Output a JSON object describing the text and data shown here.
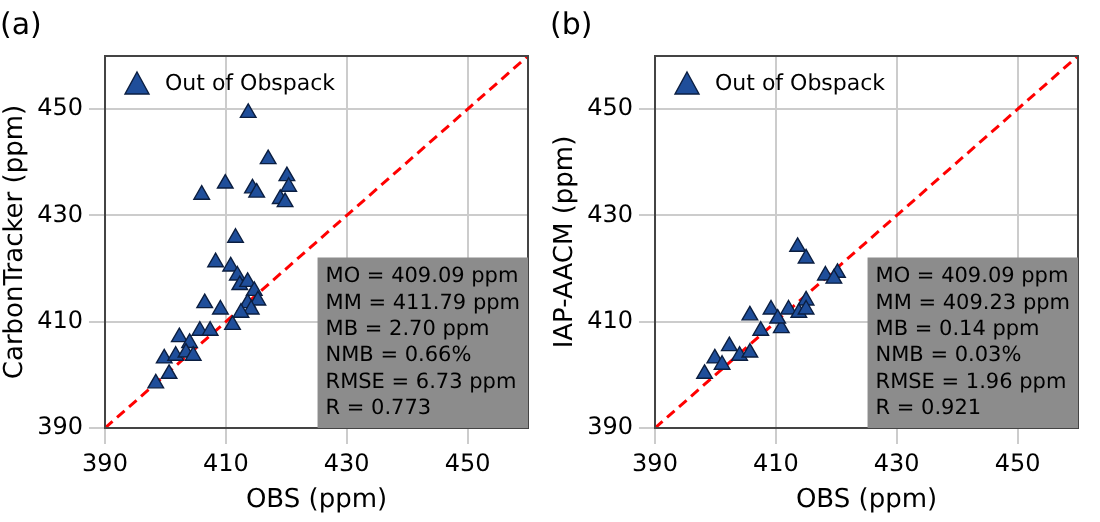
{
  "chart_data": [
    {
      "type": "scatter",
      "title": "(a)",
      "xlabel": "OBS (ppm)",
      "ylabel": "CarbonTracker (ppm)",
      "xlim": [
        390,
        460
      ],
      "ylim": [
        390,
        460
      ],
      "xticks": [
        390,
        410,
        430,
        450
      ],
      "yticks": [
        390,
        410,
        430,
        450
      ],
      "grid": true,
      "legend": "top left",
      "series": [
        {
          "name": "Out of Obspack",
          "color": "#1f4e9a",
          "marker": "triangle",
          "x": [
            413.7,
            417.0,
            409.9,
            406.0,
            414.4,
            415.1,
            420.1,
            420.4,
            419.0,
            419.8,
            411.6,
            408.3,
            410.8,
            411.9,
            412.3,
            413.6,
            414.7,
            406.5,
            409.1,
            411.1,
            413.6,
            405.7,
            402.3,
            404.0,
            399.8,
            398.4,
            401.7,
            403.4,
            404.6,
            407.4,
            415.3,
            414.2,
            412.5,
            400.6
          ],
          "values": [
            449.3,
            440.6,
            436.0,
            433.9,
            435.1,
            434.3,
            437.4,
            435.4,
            433.1,
            432.5,
            425.8,
            421.2,
            420.4,
            418.7,
            416.9,
            417.5,
            415.8,
            413.5,
            412.3,
            409.4,
            413.5,
            408.3,
            407.1,
            406.0,
            403.1,
            398.4,
            403.6,
            404.2,
            403.6,
            408.3,
            414.0,
            412.3,
            411.7,
            400.2
          ]
        },
        {
          "type": "line",
          "color": "#ff0000",
          "line_style": "dashed",
          "x": [
            390,
            460
          ],
          "values": [
            390,
            460
          ]
        }
      ],
      "annotations": [
        "MO = 409.09 ppm",
        "MM = 411.79 ppm",
        "MB = 2.70 ppm",
        "NMB = 0.66%",
        "RMSE = 6.73 ppm",
        "R = 0.773"
      ]
    },
    {
      "type": "scatter",
      "title": "(b)",
      "xlabel": "OBS (ppm)",
      "ylabel": "IAP-AACM (ppm)",
      "xlim": [
        390,
        460
      ],
      "ylim": [
        390,
        460
      ],
      "xticks": [
        390,
        410,
        430,
        450
      ],
      "yticks": [
        390,
        410,
        430,
        450
      ],
      "grid": true,
      "legend": "top left",
      "series": [
        {
          "name": "Out of Obspack",
          "color": "#1f4e9a",
          "marker": "triangle",
          "x": [
            413.6,
            415.0,
            418.2,
            420.2,
            419.6,
            405.7,
            409.2,
            412.1,
            415.0,
            413.8,
            410.9,
            402.3,
            404.0,
            399.9,
            398.2,
            405.7,
            407.5,
            415.0,
            401.1,
            410.3
          ],
          "values": [
            424.1,
            421.9,
            418.7,
            419.2,
            418.1,
            411.2,
            412.3,
            412.3,
            414.0,
            411.7,
            408.8,
            405.4,
            403.6,
            403.1,
            400.2,
            404.2,
            408.3,
            412.3,
            401.9,
            410.6
          ]
        },
        {
          "type": "line",
          "color": "#ff0000",
          "line_style": "dashed",
          "x": [
            390,
            460
          ],
          "values": [
            390,
            460
          ]
        }
      ],
      "annotations": [
        "MO = 409.09 ppm",
        "MM = 409.23 ppm",
        "MB = 0.14 ppm",
        "NMB = 0.03%",
        "RMSE = 1.96 ppm",
        "R = 0.921"
      ]
    }
  ]
}
